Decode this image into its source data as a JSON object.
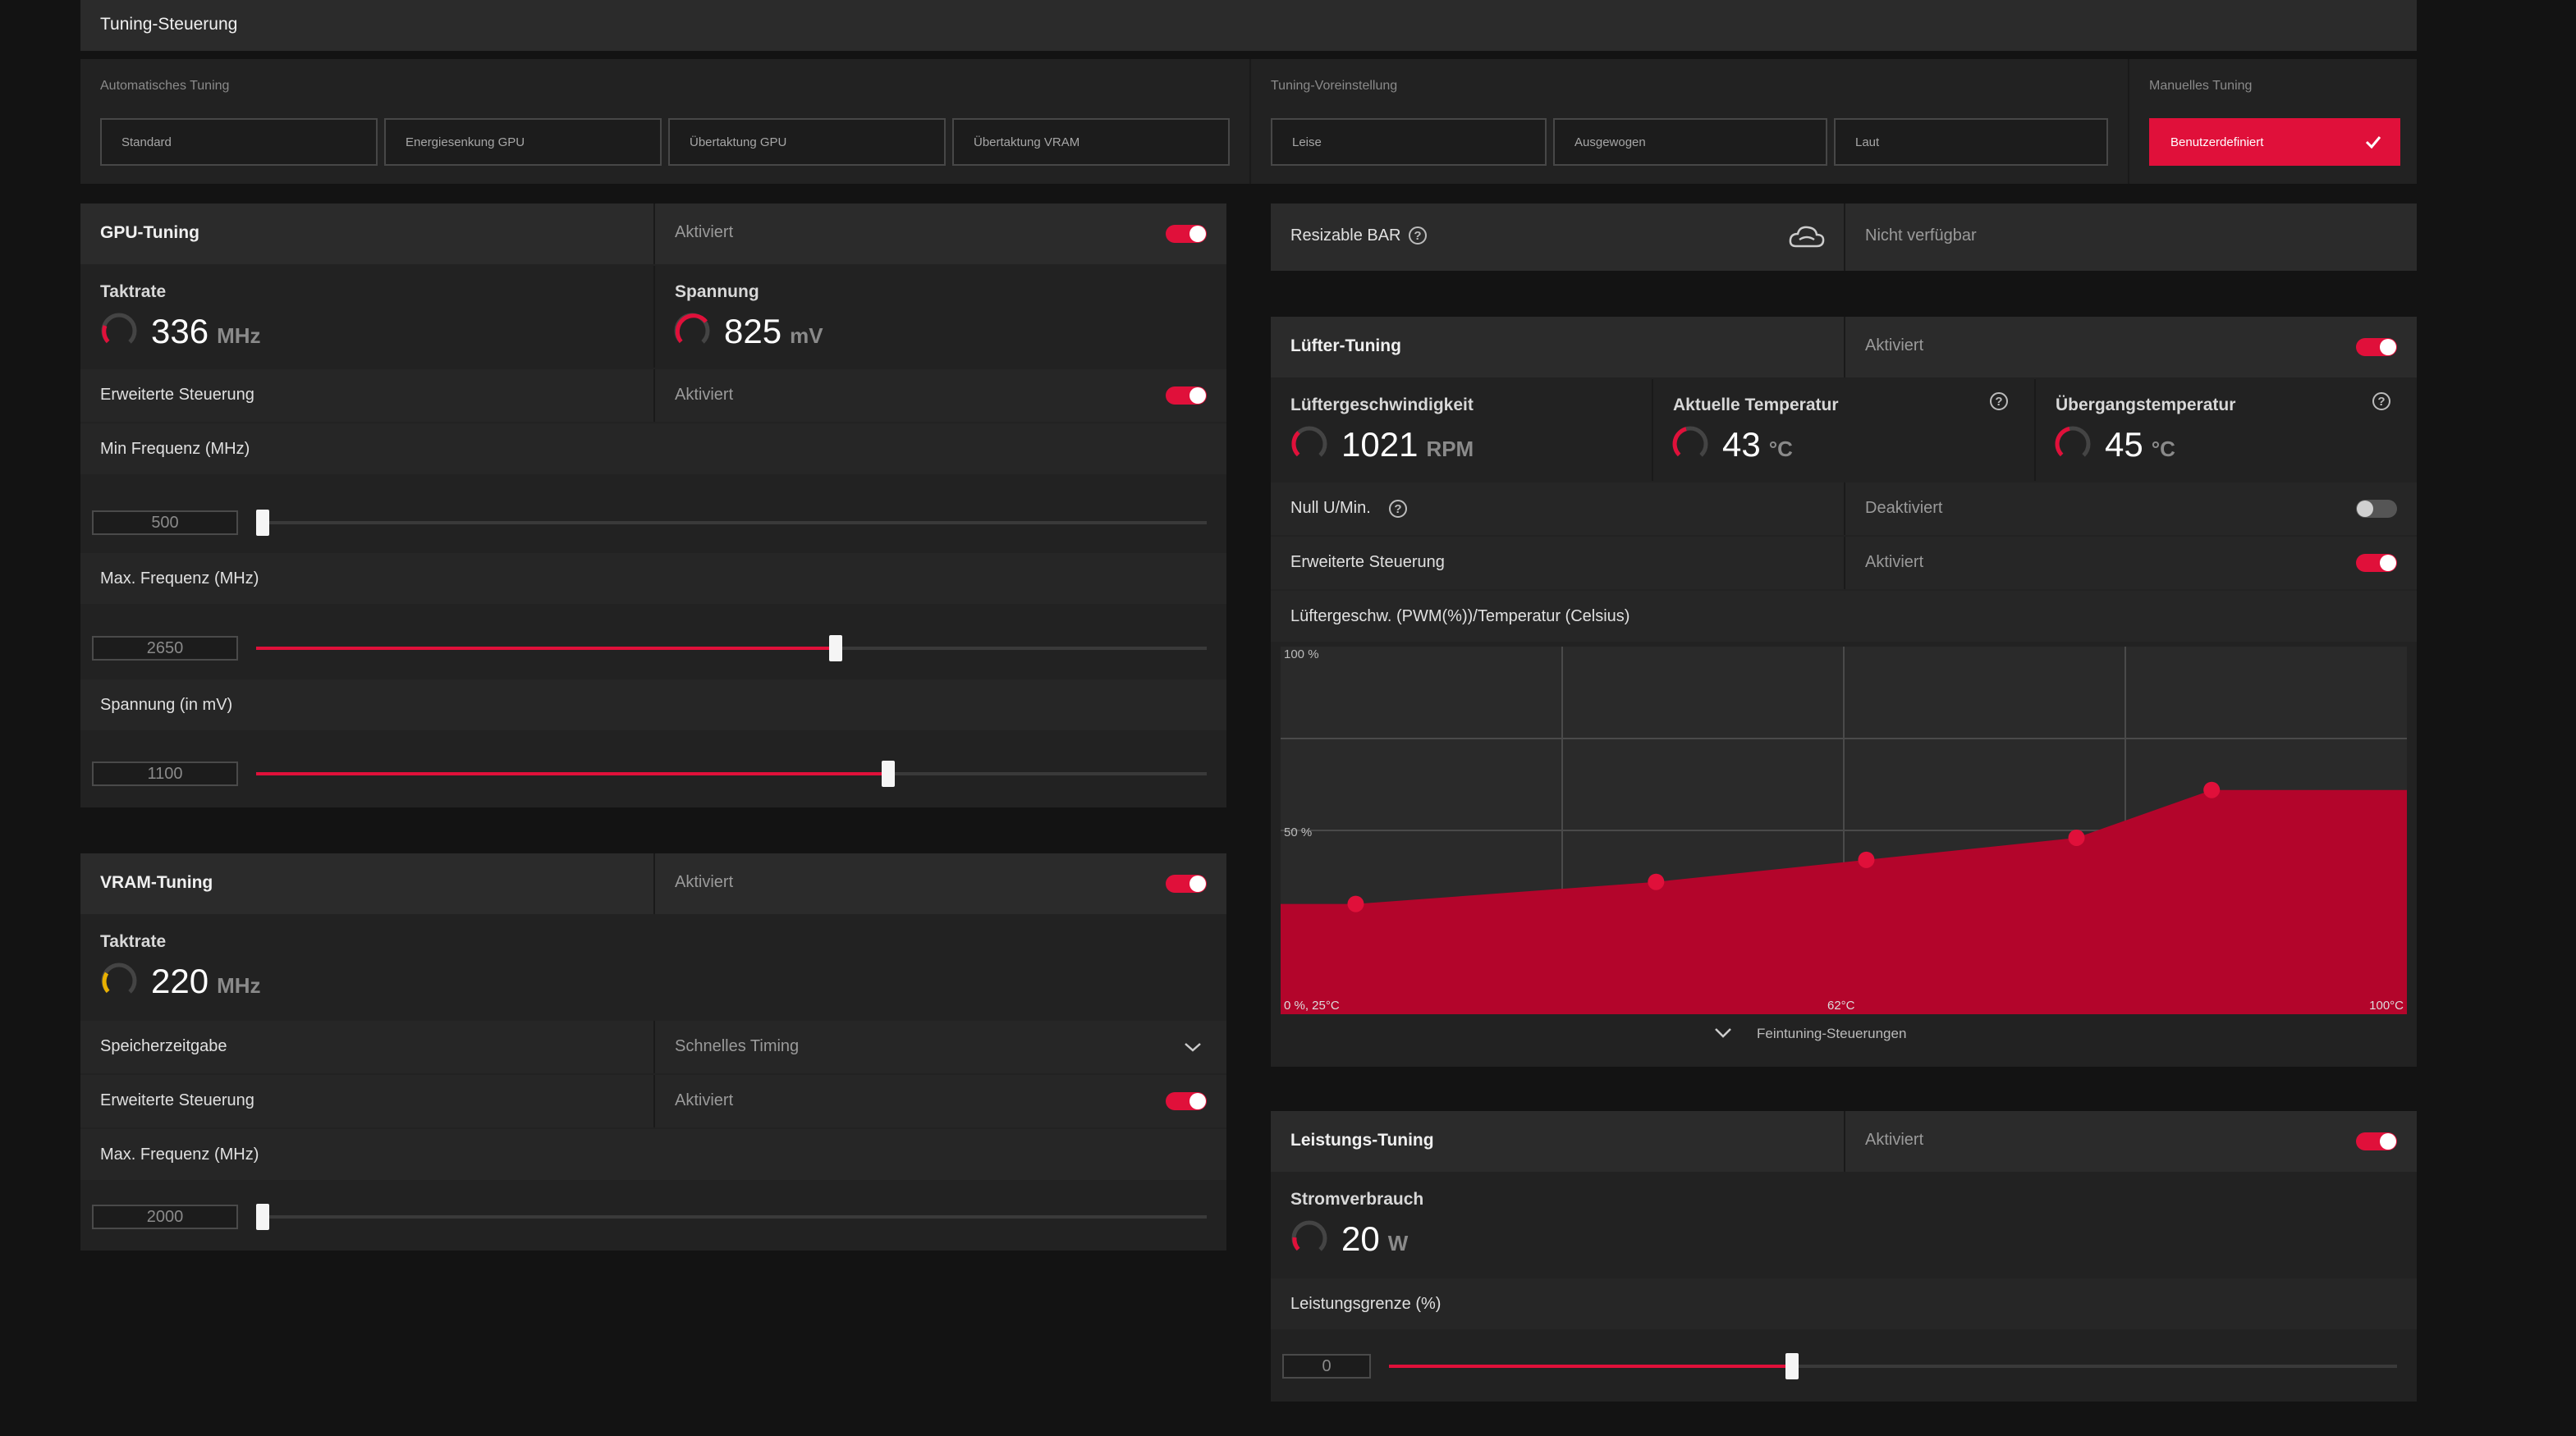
{
  "header": {
    "title": "Tuning-Steuerung"
  },
  "auto_tuning": {
    "label": "Automatisches Tuning",
    "buttons": [
      "Standard",
      "Energiesenkung GPU",
      "Übertaktung GPU",
      "Übertaktung VRAM"
    ]
  },
  "preset_tuning": {
    "label": "Tuning-Voreinstellung",
    "buttons": [
      "Leise",
      "Ausgewogen",
      "Laut"
    ]
  },
  "manual_tuning": {
    "label": "Manuelles Tuning",
    "button": "Benutzerdefiniert"
  },
  "gpu_tuning": {
    "title": "GPU-Tuning",
    "status": "Aktiviert",
    "clock": {
      "label": "Taktrate",
      "value": "336",
      "unit": "MHz"
    },
    "voltage": {
      "label": "Spannung",
      "value": "825",
      "unit": "mV"
    },
    "advanced": {
      "label": "Erweiterte Steuerung",
      "status": "Aktiviert"
    },
    "min_freq": {
      "label": "Min Frequenz (MHz)",
      "value": "500",
      "fraction": 0.0
    },
    "max_freq": {
      "label": "Max. Frequenz (MHz)",
      "value": "2650",
      "fraction": 0.61
    },
    "voltage_mv": {
      "label": "Spannung (in mV)",
      "value": "1100",
      "fraction": 0.665
    }
  },
  "vram_tuning": {
    "title": "VRAM-Tuning",
    "status": "Aktiviert",
    "clock": {
      "label": "Taktrate",
      "value": "220",
      "unit": "MHz"
    },
    "timing": {
      "label": "Speicherzeitgabe",
      "value": "Schnelles Timing"
    },
    "advanced": {
      "label": "Erweiterte Steuerung",
      "status": "Aktiviert"
    },
    "max_freq": {
      "label": "Max. Frequenz (MHz)",
      "value": "2000",
      "fraction": 0.0
    }
  },
  "resizable_bar": {
    "label": "Resizable BAR",
    "status": "Nicht verfügbar"
  },
  "fan_tuning": {
    "title": "Lüfter-Tuning",
    "status": "Aktiviert",
    "fan_speed": {
      "label": "Lüftergeschwindigkeit",
      "value": "1021",
      "unit": "RPM"
    },
    "current_temp": {
      "label": "Aktuelle Temperatur",
      "value": "43",
      "unit": "°C"
    },
    "junction_temp": {
      "label": "Übergangstemperatur",
      "value": "45",
      "unit": "°C"
    },
    "zero_rpm": {
      "label": "Null U/Min.",
      "status": "Deaktiviert"
    },
    "advanced": {
      "label": "Erweiterte Steuerung",
      "status": "Aktiviert"
    },
    "curve_title": "Lüftergeschw. (PWM(%))/Temperatur (Celsius)",
    "fine_tuning": "Feintuning-Steuerungen"
  },
  "chart_data": {
    "type": "area",
    "y_tick_labels": [
      "100 %",
      "50 %"
    ],
    "x_tick_labels": [
      "0 %, 25°C",
      "62°C",
      "100°C"
    ],
    "xlim": [
      25,
      100
    ],
    "ylim": [
      0,
      100
    ],
    "grid": true,
    "points": [
      {
        "temp": 30,
        "pwm": 30
      },
      {
        "temp": 50,
        "pwm": 36
      },
      {
        "temp": 64,
        "pwm": 42
      },
      {
        "temp": 78,
        "pwm": 48
      },
      {
        "temp": 87,
        "pwm": 61
      }
    ],
    "colors": {
      "fill": "#b3052b",
      "point": "#e0103a"
    }
  },
  "power_tuning": {
    "title": "Leistungs-Tuning",
    "status": "Aktiviert",
    "power": {
      "label": "Stromverbrauch",
      "value": "20",
      "unit": "W"
    },
    "limit": {
      "label": "Leistungsgrenze (%)",
      "value": "0",
      "fraction": 0.4
    }
  },
  "colors": {
    "accent": "#e0103a",
    "background": "#131313"
  }
}
